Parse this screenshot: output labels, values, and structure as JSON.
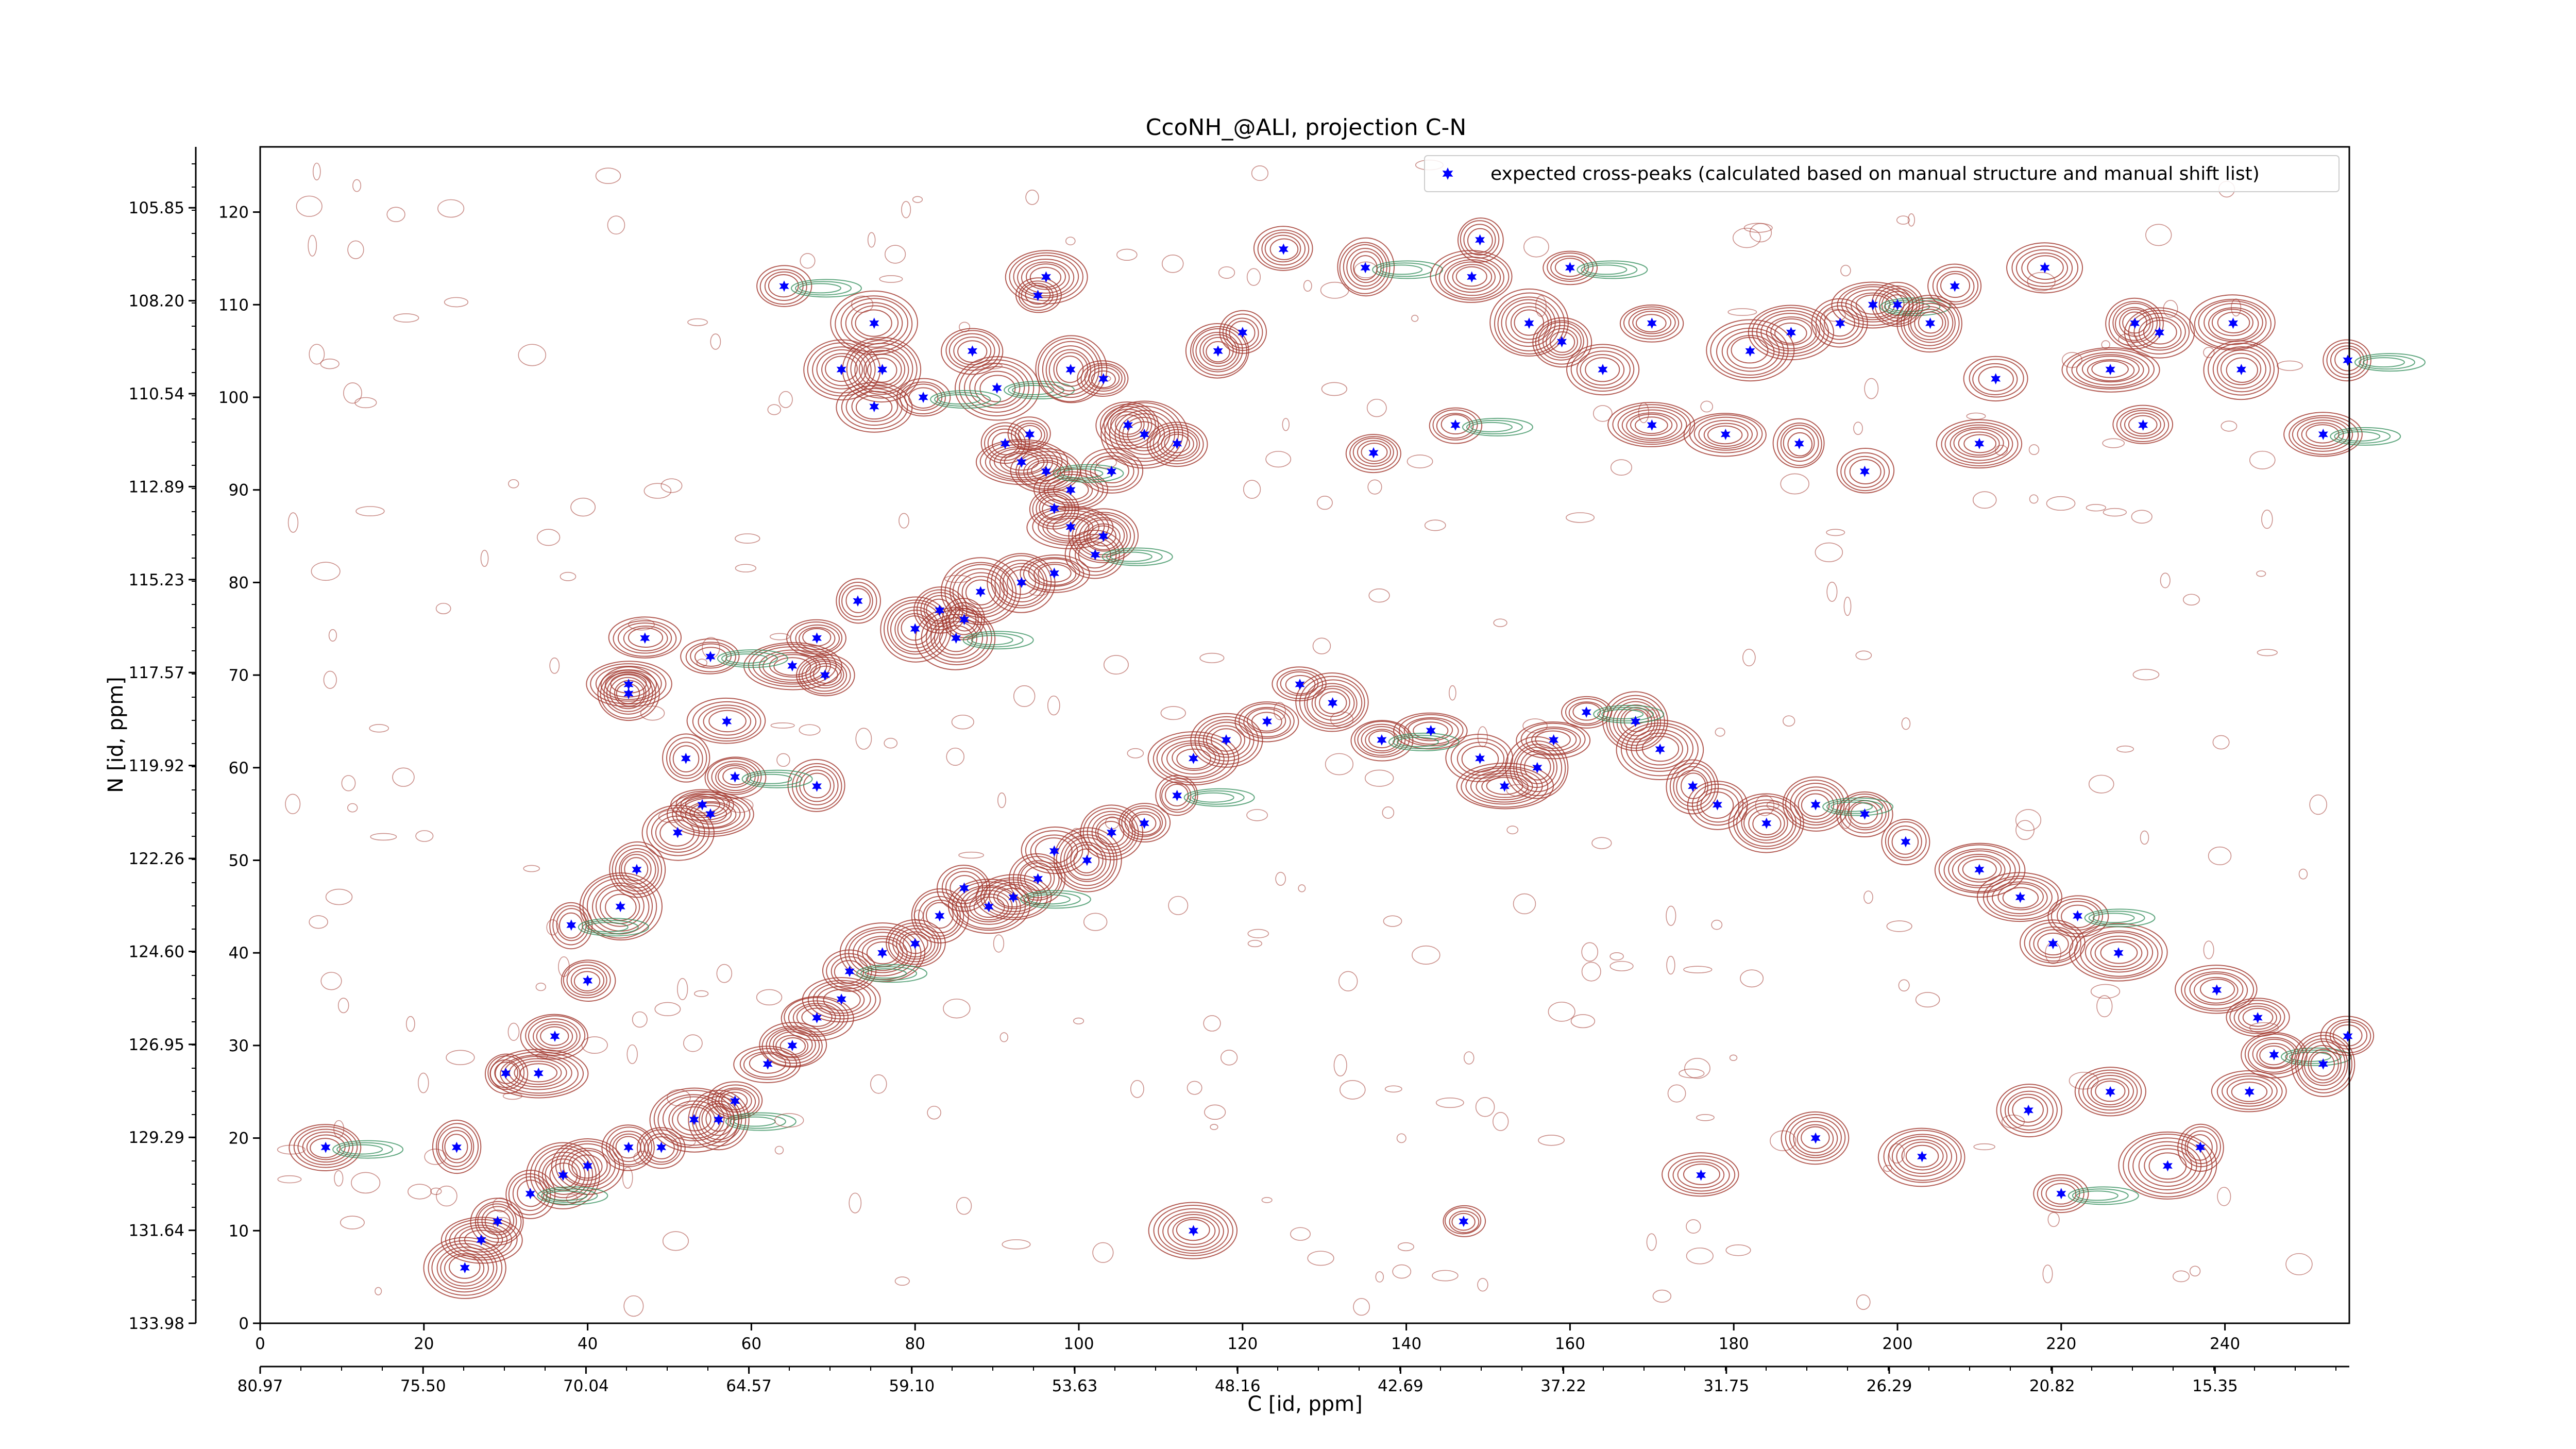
{
  "chart_data": {
    "type": "scatter",
    "title": "CcoNH_@ALI, projection C-N",
    "xlabel": "C [id, ppm]",
    "ylabel": "N [id, ppm]",
    "x_index_ticks": [
      "0",
      "20",
      "40",
      "60",
      "80",
      "100",
      "120",
      "140",
      "160",
      "180",
      "200",
      "220",
      "240"
    ],
    "x_ppm_ticks": [
      "80.97",
      "75.50",
      "70.04",
      "64.57",
      "59.10",
      "53.63",
      "48.16",
      "42.69",
      "37.22",
      "31.75",
      "26.29",
      "20.82",
      "15.35"
    ],
    "y_index_ticks": [
      "0",
      "10",
      "20",
      "30",
      "40",
      "50",
      "60",
      "70",
      "80",
      "90",
      "100",
      "110",
      "120"
    ],
    "y_ppm_ticks": [
      "133.98",
      "131.64",
      "129.29",
      "126.95",
      "124.60",
      "122.26",
      "119.92",
      "117.57",
      "115.23",
      "112.89",
      "110.54",
      "108.20",
      "105.85"
    ],
    "xlim": [
      0,
      255
    ],
    "ylim": [
      0,
      127
    ],
    "legend": {
      "placement": "top-right",
      "entries": [
        "expected cross-peaks (calculated based on manual structure and manual shift list)"
      ]
    },
    "colors": {
      "peaks": "#0000ff",
      "positive_contours": "#a0342b",
      "negative_contours": "#2e8b57"
    },
    "series": [
      {
        "name": "expected cross-peaks (calculated based on manual structure and manual shift list)",
        "points": [
          [
            64,
            112
          ],
          [
            68,
            58
          ],
          [
            75,
            108
          ],
          [
            96,
            113
          ],
          [
            95,
            111
          ],
          [
            87,
            105
          ],
          [
            90,
            101
          ],
          [
            99,
            103
          ],
          [
            94,
            96
          ],
          [
            103,
            102
          ],
          [
            106,
            97
          ],
          [
            76,
            103
          ],
          [
            81,
            100
          ],
          [
            75,
            99
          ],
          [
            71,
            103
          ],
          [
            117,
            105
          ],
          [
            120,
            107
          ],
          [
            125,
            116
          ],
          [
            135,
            114
          ],
          [
            148,
            113
          ],
          [
            149,
            117
          ],
          [
            164,
            103
          ],
          [
            159,
            106
          ],
          [
            155,
            108
          ],
          [
            160,
            114
          ],
          [
            170,
            108
          ],
          [
            182,
            105
          ],
          [
            187,
            107
          ],
          [
            193,
            108
          ],
          [
            200,
            110
          ],
          [
            197,
            110
          ],
          [
            204,
            108
          ],
          [
            207,
            112
          ],
          [
            218,
            114
          ],
          [
            229,
            108
          ],
          [
            241,
            108
          ],
          [
            255,
            104
          ],
          [
            232,
            107
          ],
          [
            242,
            103
          ],
          [
            226,
            103
          ],
          [
            212,
            102
          ],
          [
            230,
            97
          ],
          [
            252,
            96
          ],
          [
            210,
            95
          ],
          [
            196,
            92
          ],
          [
            188,
            95
          ],
          [
            179,
            96
          ],
          [
            170,
            97
          ],
          [
            146,
            97
          ],
          [
            136,
            94
          ],
          [
            112,
            95
          ],
          [
            108,
            96
          ],
          [
            104,
            92
          ],
          [
            99,
            90
          ],
          [
            96,
            92
          ],
          [
            93,
            93
          ],
          [
            91,
            95
          ],
          [
            97,
            88
          ],
          [
            99,
            86
          ],
          [
            103,
            85
          ],
          [
            102,
            83
          ],
          [
            97,
            81
          ],
          [
            93,
            80
          ],
          [
            88,
            79
          ],
          [
            86,
            76
          ],
          [
            83,
            77
          ],
          [
            85,
            74
          ],
          [
            80,
            75
          ],
          [
            73,
            78
          ],
          [
            68,
            74
          ],
          [
            69,
            70
          ],
          [
            65,
            71
          ],
          [
            55,
            72
          ],
          [
            47,
            74
          ],
          [
            45,
            69
          ],
          [
            45,
            68
          ],
          [
            52,
            61
          ],
          [
            57,
            65
          ],
          [
            58,
            59
          ],
          [
            55,
            55
          ],
          [
            54,
            56
          ],
          [
            51,
            53
          ],
          [
            46,
            49
          ],
          [
            44,
            45
          ],
          [
            38,
            43
          ],
          [
            40,
            37
          ],
          [
            36,
            31
          ],
          [
            34,
            27
          ],
          [
            30,
            27
          ],
          [
            24,
            19
          ],
          [
            8,
            19
          ],
          [
            114,
            10
          ],
          [
            147,
            11
          ],
          [
            176,
            16
          ],
          [
            190,
            20
          ],
          [
            203,
            18
          ],
          [
            220,
            14
          ],
          [
            216,
            23
          ],
          [
            226,
            25
          ],
          [
            233,
            17
          ],
          [
            237,
            19
          ],
          [
            243,
            25
          ],
          [
            246,
            29
          ],
          [
            252,
            28
          ],
          [
            255,
            31
          ],
          [
            244,
            33
          ],
          [
            239,
            36
          ],
          [
            227,
            40
          ],
          [
            222,
            44
          ],
          [
            219,
            41
          ],
          [
            215,
            46
          ],
          [
            210,
            49
          ],
          [
            201,
            52
          ],
          [
            196,
            55
          ],
          [
            190,
            56
          ],
          [
            184,
            54
          ],
          [
            178,
            56
          ],
          [
            175,
            58
          ],
          [
            171,
            62
          ],
          [
            168,
            65
          ],
          [
            162,
            66
          ],
          [
            158,
            63
          ],
          [
            156,
            60
          ],
          [
            152,
            58
          ],
          [
            149,
            61
          ],
          [
            143,
            64
          ],
          [
            137,
            63
          ],
          [
            131,
            67
          ],
          [
            127,
            69
          ],
          [
            123,
            65
          ],
          [
            118,
            63
          ],
          [
            114,
            61
          ],
          [
            112,
            57
          ],
          [
            108,
            54
          ],
          [
            104,
            53
          ],
          [
            101,
            50
          ],
          [
            97,
            51
          ],
          [
            95,
            48
          ],
          [
            92,
            46
          ],
          [
            89,
            45
          ],
          [
            86,
            47
          ],
          [
            83,
            44
          ],
          [
            80,
            41
          ],
          [
            76,
            40
          ],
          [
            72,
            38
          ],
          [
            71,
            35
          ],
          [
            68,
            33
          ],
          [
            65,
            30
          ],
          [
            62,
            28
          ],
          [
            58,
            24
          ],
          [
            56,
            22
          ],
          [
            53,
            22
          ],
          [
            49,
            19
          ],
          [
            45,
            19
          ],
          [
            40,
            17
          ],
          [
            37,
            16
          ],
          [
            33,
            14
          ],
          [
            29,
            11
          ],
          [
            27,
            9
          ],
          [
            25,
            6
          ]
        ]
      }
    ]
  }
}
